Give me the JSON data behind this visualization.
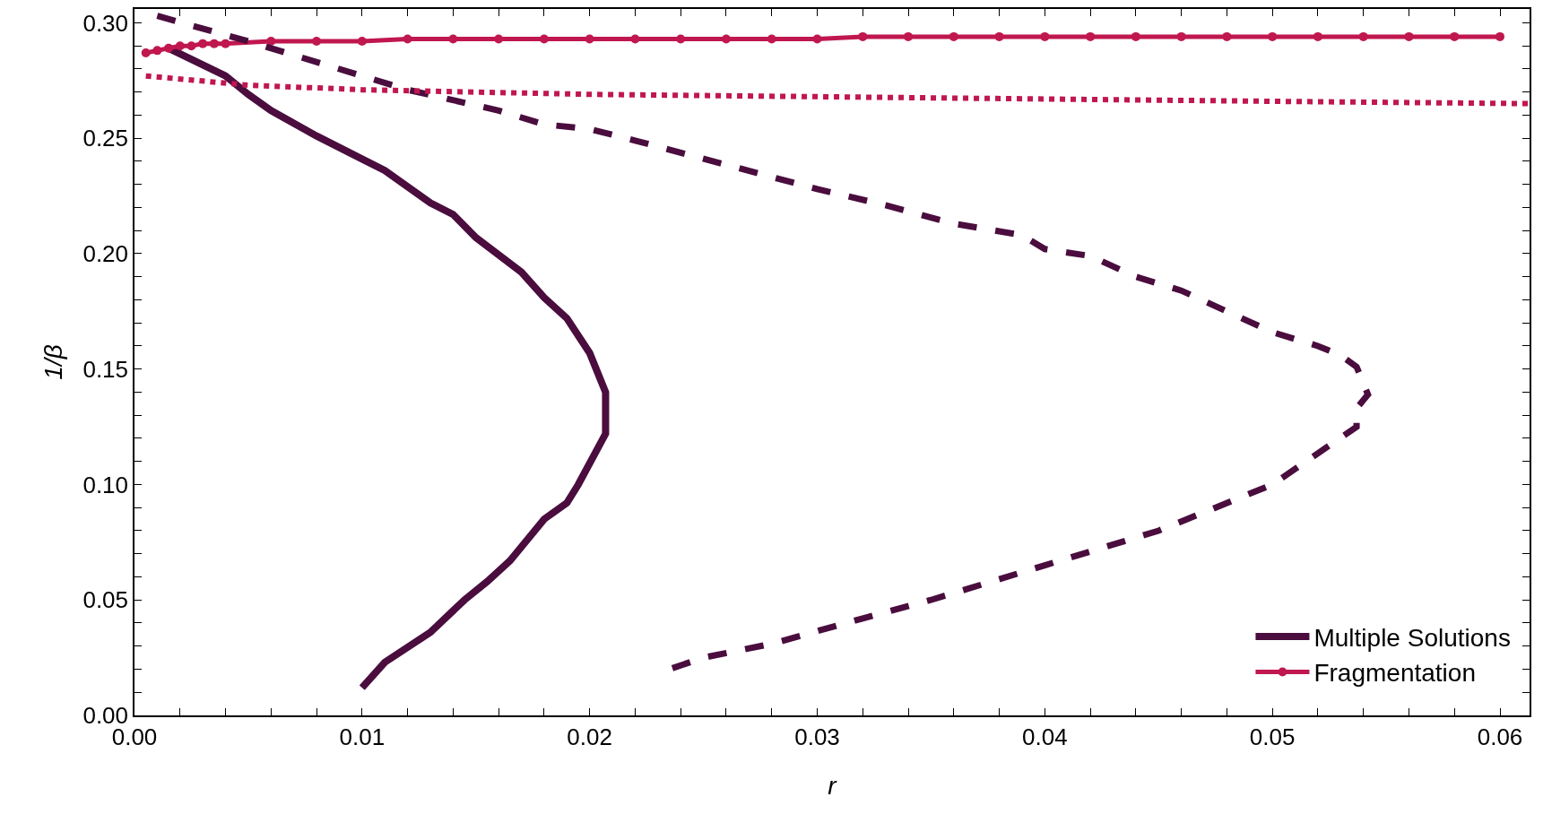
{
  "chart_data": {
    "type": "line",
    "xlabel": "r",
    "ylabel": "1/β",
    "xlim": [
      0,
      0.0613
    ],
    "ylim": [
      0,
      0.306
    ],
    "xticks": [
      {
        "value": 0,
        "label": "0.00"
      },
      {
        "value": 0.002,
        "label": null
      },
      {
        "value": 0.004,
        "label": null
      },
      {
        "value": 0.006,
        "label": null
      },
      {
        "value": 0.008,
        "label": null
      },
      {
        "value": 0.01,
        "label": "0.01"
      },
      {
        "value": 0.012,
        "label": null
      },
      {
        "value": 0.014,
        "label": null
      },
      {
        "value": 0.016,
        "label": null
      },
      {
        "value": 0.018,
        "label": null
      },
      {
        "value": 0.02,
        "label": "0.02"
      },
      {
        "value": 0.022,
        "label": null
      },
      {
        "value": 0.024,
        "label": null
      },
      {
        "value": 0.026,
        "label": null
      },
      {
        "value": 0.028,
        "label": null
      },
      {
        "value": 0.03,
        "label": "0.03"
      },
      {
        "value": 0.032,
        "label": null
      },
      {
        "value": 0.034,
        "label": null
      },
      {
        "value": 0.036,
        "label": null
      },
      {
        "value": 0.038,
        "label": null
      },
      {
        "value": 0.04,
        "label": "0.04"
      },
      {
        "value": 0.042,
        "label": null
      },
      {
        "value": 0.044,
        "label": null
      },
      {
        "value": 0.046,
        "label": null
      },
      {
        "value": 0.048,
        "label": null
      },
      {
        "value": 0.05,
        "label": "0.05"
      },
      {
        "value": 0.052,
        "label": null
      },
      {
        "value": 0.054,
        "label": null
      },
      {
        "value": 0.056,
        "label": null
      },
      {
        "value": 0.058,
        "label": null
      },
      {
        "value": 0.06,
        "label": "0.06"
      }
    ],
    "yticks": [
      {
        "value": 0,
        "label": "0.00"
      },
      {
        "value": 0.01,
        "label": null
      },
      {
        "value": 0.02,
        "label": null
      },
      {
        "value": 0.03,
        "label": null
      },
      {
        "value": 0.04,
        "label": null
      },
      {
        "value": 0.05,
        "label": "0.05"
      },
      {
        "value": 0.06,
        "label": null
      },
      {
        "value": 0.07,
        "label": null
      },
      {
        "value": 0.08,
        "label": null
      },
      {
        "value": 0.09,
        "label": null
      },
      {
        "value": 0.1,
        "label": "0.10"
      },
      {
        "value": 0.11,
        "label": null
      },
      {
        "value": 0.12,
        "label": null
      },
      {
        "value": 0.13,
        "label": null
      },
      {
        "value": 0.14,
        "label": null
      },
      {
        "value": 0.15,
        "label": "0.15"
      },
      {
        "value": 0.16,
        "label": null
      },
      {
        "value": 0.17,
        "label": null
      },
      {
        "value": 0.18,
        "label": null
      },
      {
        "value": 0.19,
        "label": null
      },
      {
        "value": 0.2,
        "label": "0.20"
      },
      {
        "value": 0.21,
        "label": null
      },
      {
        "value": 0.22,
        "label": null
      },
      {
        "value": 0.23,
        "label": null
      },
      {
        "value": 0.24,
        "label": null
      },
      {
        "value": 0.25,
        "label": "0.25"
      },
      {
        "value": 0.26,
        "label": null
      },
      {
        "value": 0.27,
        "label": null
      },
      {
        "value": 0.28,
        "label": null
      },
      {
        "value": 0.29,
        "label": null
      },
      {
        "value": 0.3,
        "label": "0.30"
      }
    ],
    "legend": "bottom right",
    "series": [
      {
        "name": "Multiple Solutions",
        "color": "#4a0d3e",
        "line_style": "solid",
        "marker": "none",
        "x": [
          0.0015,
          0.004,
          0.005,
          0.006,
          0.008,
          0.01,
          0.011,
          0.013,
          0.014,
          0.015,
          0.017,
          0.018,
          0.019,
          0.02,
          0.0207,
          0.0207,
          0.0195,
          0.019,
          0.018,
          0.0165,
          0.0155,
          0.0145,
          0.013,
          0.011,
          0.01
        ],
        "values": [
          0.289,
          0.277,
          0.269,
          0.262,
          0.251,
          0.241,
          0.236,
          0.222,
          0.217,
          0.207,
          0.192,
          0.181,
          0.172,
          0.157,
          0.14,
          0.122,
          0.1,
          0.092,
          0.085,
          0.067,
          0.058,
          0.05,
          0.036,
          0.023,
          0.012
        ]
      },
      {
        "name": "Fragmentation",
        "color": "#c0174f",
        "line_style": "solid",
        "marker": "circle",
        "x": [
          0.0005,
          0.001,
          0.0015,
          0.002,
          0.0025,
          0.003,
          0.0035,
          0.004,
          0.006,
          0.008,
          0.01,
          0.012,
          0.014,
          0.016,
          0.018,
          0.02,
          0.022,
          0.024,
          0.026,
          0.028,
          0.03,
          0.032,
          0.034,
          0.036,
          0.038,
          0.04,
          0.042,
          0.044,
          0.046,
          0.048,
          0.05,
          0.052,
          0.054,
          0.056,
          0.058,
          0.06
        ],
        "values": [
          0.287,
          0.288,
          0.289,
          0.29,
          0.29,
          0.291,
          0.291,
          0.291,
          0.292,
          0.292,
          0.292,
          0.293,
          0.293,
          0.293,
          0.293,
          0.293,
          0.293,
          0.293,
          0.293,
          0.293,
          0.293,
          0.294,
          0.294,
          0.294,
          0.294,
          0.294,
          0.294,
          0.294,
          0.294,
          0.294,
          0.294,
          0.294,
          0.294,
          0.294,
          0.294,
          0.294
        ]
      },
      {
        "color": "#4a0d3e",
        "line_style": "dashed",
        "marker": "none",
        "x": [
          0.001,
          0.005,
          0.01,
          0.012,
          0.016,
          0.018,
          0.02,
          0.022,
          0.03,
          0.033,
          0.036,
          0.039,
          0.04,
          0.042,
          0.044,
          0.046,
          0.05,
          0.052,
          0.053,
          0.0537,
          0.0542,
          0.0537,
          0.0537,
          0.05,
          0.045,
          0.04,
          0.035,
          0.032,
          0.028,
          0.025,
          0.0235
        ],
        "values": [
          0.303,
          0.292,
          0.277,
          0.271,
          0.262,
          0.256,
          0.254,
          0.249,
          0.228,
          0.221,
          0.213,
          0.208,
          0.202,
          0.199,
          0.19,
          0.184,
          0.166,
          0.16,
          0.156,
          0.151,
          0.139,
          0.133,
          0.125,
          0.1,
          0.08,
          0.065,
          0.05,
          0.042,
          0.031,
          0.025,
          0.02
        ]
      },
      {
        "color": "#c0174f",
        "line_style": "dotted",
        "marker": "none",
        "x": [
          0.0005,
          0.005,
          0.01,
          0.02,
          0.03,
          0.04,
          0.05,
          0.0613
        ],
        "values": [
          0.277,
          0.273,
          0.271,
          0.269,
          0.268,
          0.267,
          0.266,
          0.265
        ]
      }
    ]
  }
}
